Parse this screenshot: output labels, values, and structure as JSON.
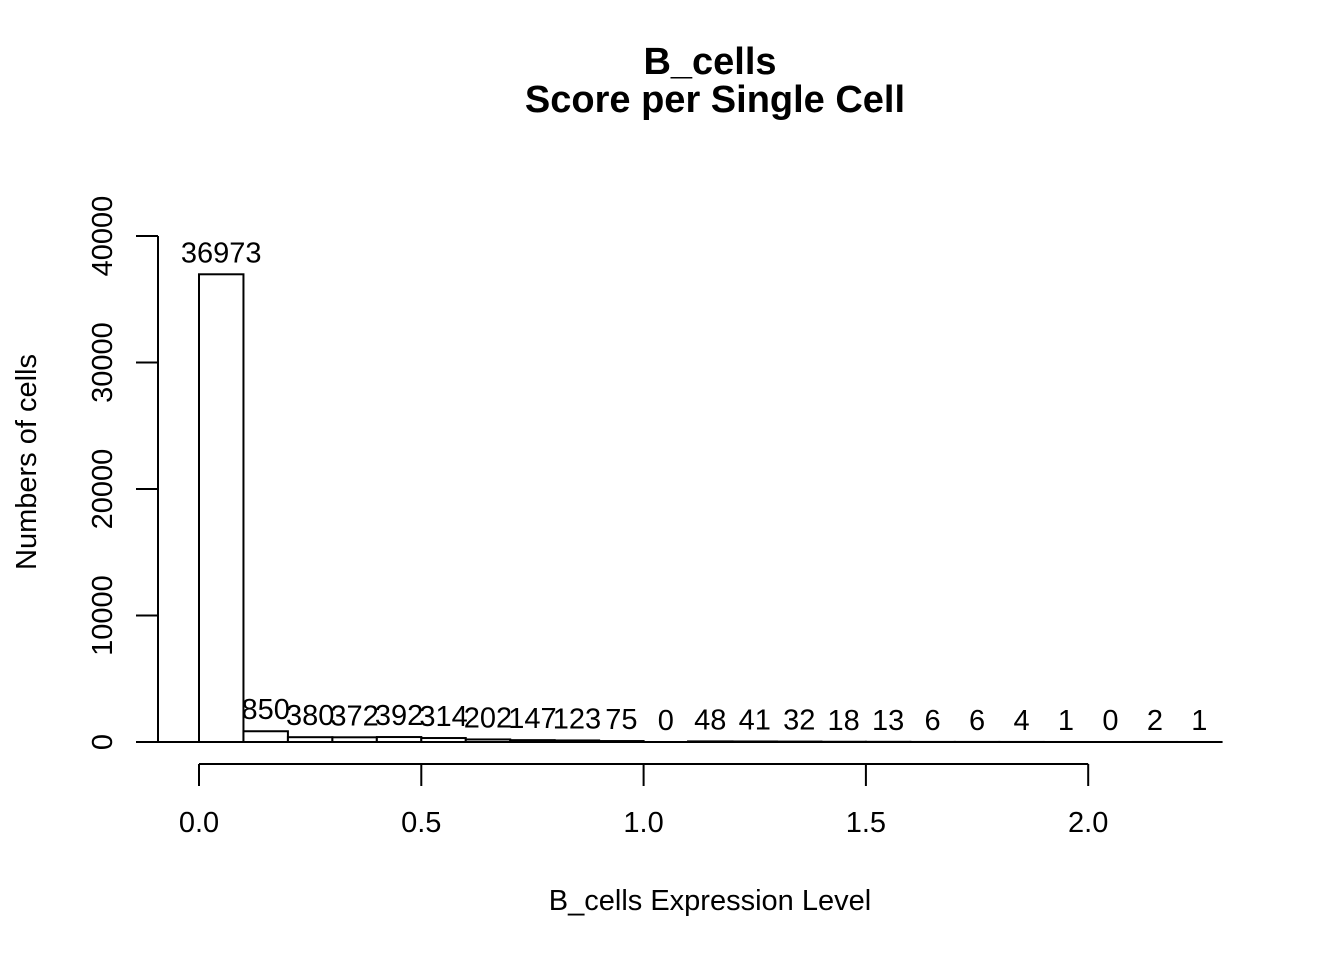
{
  "chart_data": {
    "type": "bar",
    "title": "B_cells",
    "subtitle": "Score per Single Cell",
    "xlabel": "B_cells Expression Level",
    "ylabel": "Numbers of cells",
    "bin_edges": [
      0.0,
      0.1,
      0.2,
      0.3,
      0.4,
      0.5,
      0.6,
      0.7,
      0.8,
      0.9,
      1.0,
      1.1,
      1.2,
      1.3,
      1.4,
      1.5,
      1.6,
      1.7,
      1.8,
      1.9,
      2.0,
      2.1,
      2.2,
      2.3
    ],
    "values": [
      36973,
      850,
      380,
      372,
      392,
      314,
      202,
      147,
      123,
      75,
      0,
      48,
      41,
      32,
      18,
      13,
      6,
      6,
      4,
      1,
      0,
      2,
      1
    ],
    "value_labels": [
      "36973",
      "850",
      "380",
      "372",
      "392",
      "314",
      "202",
      "147",
      "123",
      "75",
      "0",
      "48",
      "41",
      "32",
      "18",
      "13",
      "6",
      "6",
      "4",
      "1",
      "0",
      "2",
      "1"
    ],
    "xlim": [
      0.0,
      2.3
    ],
    "ylim": [
      0,
      40000
    ],
    "x_ticks": [
      0.0,
      0.5,
      1.0,
      1.5,
      2.0
    ],
    "x_tick_labels": [
      "0.0",
      "0.5",
      "1.0",
      "1.5",
      "2.0"
    ],
    "y_ticks": [
      0,
      10000,
      20000,
      30000,
      40000
    ],
    "y_tick_labels": [
      "0",
      "10000",
      "20000",
      "30000",
      "40000"
    ],
    "grid": false,
    "colors": {
      "bar_fill": "#ffffff",
      "bar_stroke": "#000000"
    }
  }
}
